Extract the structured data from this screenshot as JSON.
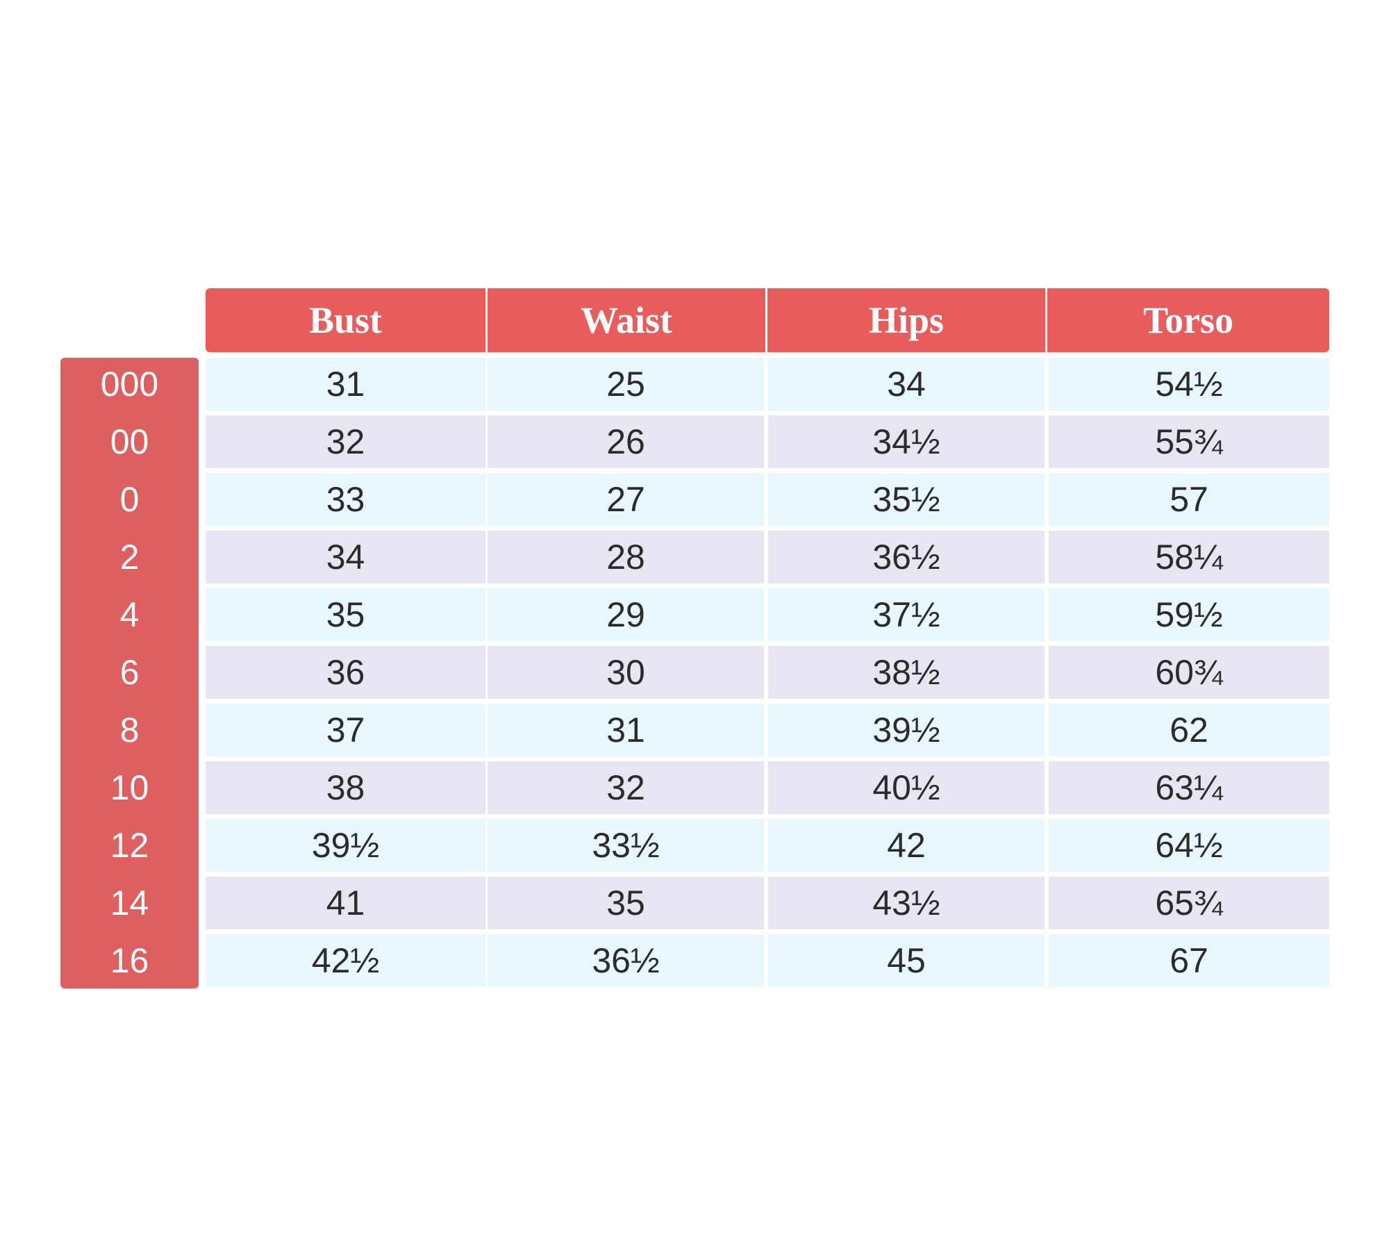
{
  "columns": [
    "Bust",
    "Waist",
    "Hips",
    "Torso"
  ],
  "rows": [
    {
      "size": "000",
      "values": [
        "31",
        "25",
        "34",
        "54½"
      ]
    },
    {
      "size": "00",
      "values": [
        "32",
        "26",
        "34½",
        "55¾"
      ]
    },
    {
      "size": "0",
      "values": [
        "33",
        "27",
        "35½",
        "57"
      ]
    },
    {
      "size": "2",
      "values": [
        "34",
        "28",
        "36½",
        "58¼"
      ]
    },
    {
      "size": "4",
      "values": [
        "35",
        "29",
        "37½",
        "59½"
      ]
    },
    {
      "size": "6",
      "values": [
        "36",
        "30",
        "38½",
        "60¾"
      ]
    },
    {
      "size": "8",
      "values": [
        "37",
        "31",
        "39½",
        "62"
      ]
    },
    {
      "size": "10",
      "values": [
        "38",
        "32",
        "40½",
        "63¼"
      ]
    },
    {
      "size": "12",
      "values": [
        "39½",
        "33½",
        "42",
        "64½"
      ]
    },
    {
      "size": "14",
      "values": [
        "41",
        "35",
        "43½",
        "65¾"
      ]
    },
    {
      "size": "16",
      "values": [
        "42½",
        "36½",
        "45",
        "67"
      ]
    }
  ],
  "colors": {
    "header": "#e85c5c",
    "size_column": "#dd5f60",
    "row_light_blue": "#e8f6fd",
    "row_lavender": "#e6e5f1"
  }
}
